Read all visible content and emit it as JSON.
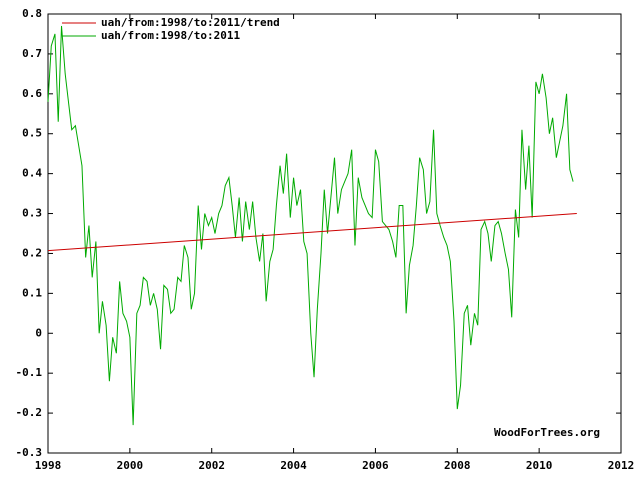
{
  "chart_data": {
    "type": "line",
    "watermark": "WoodForTrees.org",
    "xlim": [
      1998,
      2012
    ],
    "xticks": [
      1998,
      2000,
      2002,
      2004,
      2006,
      2008,
      2010,
      2012
    ],
    "ylim": [
      -0.3,
      0.8
    ],
    "yticks": [
      -0.3,
      -0.2,
      -0.1,
      0,
      0.1,
      0.2,
      0.3,
      0.4,
      0.5,
      0.6,
      0.7,
      0.8
    ],
    "legend": "top-left",
    "series": [
      {
        "name": "uah/from:1998/to:2011/trend",
        "color": "#cc0000",
        "x": [
          1998,
          2010.92
        ],
        "values": [
          0.207,
          0.3
        ]
      },
      {
        "name": "uah/from:1998/to:2011",
        "color": "#00aa00",
        "x": [
          1998.0,
          1998.08,
          1998.17,
          1998.25,
          1998.33,
          1998.42,
          1998.5,
          1998.58,
          1998.67,
          1998.75,
          1998.83,
          1998.92,
          1999.0,
          1999.08,
          1999.17,
          1999.25,
          1999.33,
          1999.42,
          1999.5,
          1999.58,
          1999.67,
          1999.75,
          1999.83,
          1999.92,
          2000.0,
          2000.08,
          2000.17,
          2000.25,
          2000.33,
          2000.42,
          2000.5,
          2000.58,
          2000.67,
          2000.75,
          2000.83,
          2000.92,
          2001.0,
          2001.08,
          2001.17,
          2001.25,
          2001.33,
          2001.42,
          2001.5,
          2001.58,
          2001.67,
          2001.75,
          2001.83,
          2001.92,
          2002.0,
          2002.08,
          2002.17,
          2002.25,
          2002.33,
          2002.42,
          2002.5,
          2002.58,
          2002.67,
          2002.75,
          2002.83,
          2002.92,
          2003.0,
          2003.08,
          2003.17,
          2003.25,
          2003.33,
          2003.42,
          2003.5,
          2003.58,
          2003.67,
          2003.75,
          2003.83,
          2003.92,
          2004.0,
          2004.08,
          2004.17,
          2004.25,
          2004.33,
          2004.42,
          2004.5,
          2004.58,
          2004.67,
          2004.75,
          2004.83,
          2004.92,
          2005.0,
          2005.08,
          2005.17,
          2005.25,
          2005.33,
          2005.42,
          2005.5,
          2005.58,
          2005.67,
          2005.75,
          2005.83,
          2005.92,
          2006.0,
          2006.08,
          2006.17,
          2006.25,
          2006.33,
          2006.42,
          2006.5,
          2006.58,
          2006.67,
          2006.75,
          2006.83,
          2006.92,
          2007.0,
          2007.08,
          2007.17,
          2007.25,
          2007.33,
          2007.42,
          2007.5,
          2007.58,
          2007.67,
          2007.75,
          2007.83,
          2007.92,
          2008.0,
          2008.08,
          2008.17,
          2008.25,
          2008.33,
          2008.42,
          2008.5,
          2008.58,
          2008.67,
          2008.75,
          2008.83,
          2008.92,
          2009.0,
          2009.08,
          2009.17,
          2009.25,
          2009.33,
          2009.42,
          2009.5,
          2009.58,
          2009.67,
          2009.75,
          2009.83,
          2009.92,
          2010.0,
          2010.08,
          2010.17,
          2010.25,
          2010.33,
          2010.42,
          2010.5,
          2010.58,
          2010.67,
          2010.75,
          2010.83
        ],
        "values": [
          0.58,
          0.72,
          0.75,
          0.53,
          0.77,
          0.65,
          0.58,
          0.51,
          0.52,
          0.47,
          0.42,
          0.19,
          0.27,
          0.14,
          0.23,
          0.0,
          0.08,
          0.02,
          -0.12,
          -0.01,
          -0.05,
          0.13,
          0.05,
          0.03,
          -0.01,
          -0.23,
          0.05,
          0.07,
          0.14,
          0.13,
          0.07,
          0.1,
          0.06,
          -0.04,
          0.12,
          0.11,
          0.05,
          0.06,
          0.14,
          0.13,
          0.22,
          0.19,
          0.06,
          0.1,
          0.32,
          0.21,
          0.3,
          0.27,
          0.29,
          0.25,
          0.3,
          0.32,
          0.37,
          0.39,
          0.32,
          0.24,
          0.34,
          0.23,
          0.33,
          0.26,
          0.33,
          0.24,
          0.18,
          0.25,
          0.08,
          0.18,
          0.21,
          0.32,
          0.42,
          0.35,
          0.45,
          0.29,
          0.39,
          0.32,
          0.36,
          0.23,
          0.2,
          0.0,
          -0.11,
          0.06,
          0.2,
          0.36,
          0.25,
          0.35,
          0.44,
          0.3,
          0.36,
          0.38,
          0.4,
          0.46,
          0.22,
          0.39,
          0.34,
          0.32,
          0.3,
          0.29,
          0.46,
          0.43,
          0.28,
          0.27,
          0.26,
          0.23,
          0.19,
          0.32,
          0.32,
          0.05,
          0.17,
          0.22,
          0.32,
          0.44,
          0.41,
          0.3,
          0.33,
          0.51,
          0.3,
          0.27,
          0.24,
          0.22,
          0.18,
          0.03,
          -0.19,
          -0.13,
          0.05,
          0.07,
          -0.03,
          0.05,
          0.02,
          0.26,
          0.28,
          0.25,
          0.18,
          0.27,
          0.28,
          0.25,
          0.2,
          0.16,
          0.04,
          0.31,
          0.24,
          0.51,
          0.36,
          0.47,
          0.29,
          0.63,
          0.6,
          0.65,
          0.59,
          0.5,
          0.54,
          0.44,
          0.48,
          0.52,
          0.6,
          0.41,
          0.38
        ]
      }
    ]
  }
}
